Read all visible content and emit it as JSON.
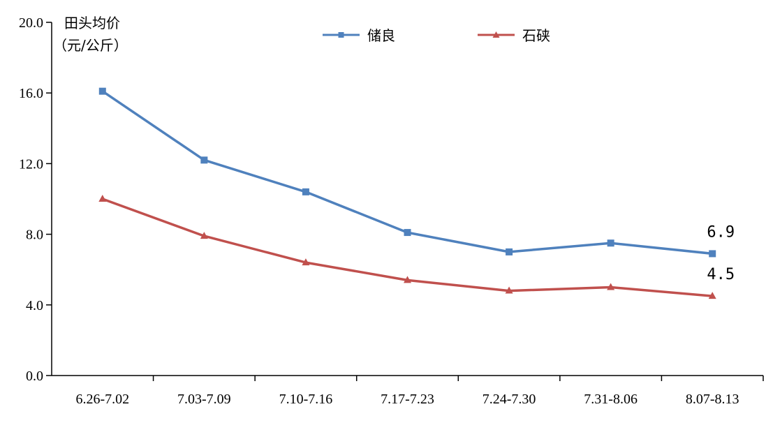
{
  "chart_data": {
    "type": "line",
    "ylabel_lines": [
      "田头均价",
      "（元/公斤）"
    ],
    "ylim": [
      0,
      20
    ],
    "yticks": [
      "0.0",
      "4.0",
      "8.0",
      "12.0",
      "16.0",
      "20.0"
    ],
    "categories": [
      "6.26-7.02",
      "7.03-7.09",
      "7.10-7.16",
      "7.17-7.23",
      "7.24-7.30",
      "7.31-8.06",
      "8.07-8.13"
    ],
    "series": [
      {
        "name": "储良",
        "values": [
          16.1,
          12.2,
          10.4,
          8.1,
          7.0,
          7.5,
          6.9
        ],
        "color": "#4f81bd",
        "marker": "square",
        "end_label": "6.9"
      },
      {
        "name": "石硖",
        "values": [
          10.0,
          7.9,
          6.4,
          5.4,
          4.8,
          5.0,
          4.5
        ],
        "color": "#c0504d",
        "marker": "triangle",
        "end_label": "4.5"
      }
    ],
    "legend_position": "top",
    "grid": false
  }
}
